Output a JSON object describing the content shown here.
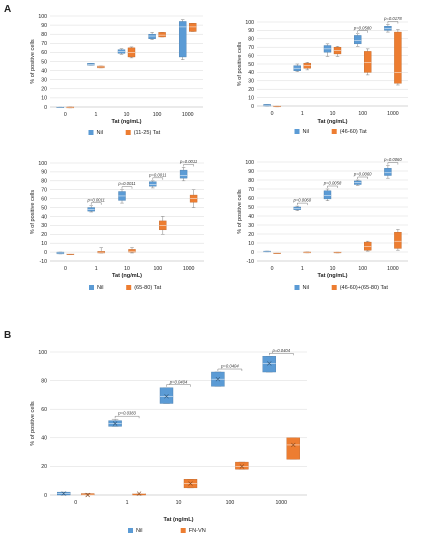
{
  "figure": {
    "panel_labels": [
      "A",
      "B"
    ]
  },
  "chart_data": [
    {
      "type": "box",
      "panel": "A",
      "ylabel": "% of positive cells",
      "xlabel": "Tat (ng/mL)",
      "categories": [
        "0",
        "1",
        "10",
        "100",
        "1000"
      ],
      "ylim": [
        0,
        100
      ],
      "yticks": [
        0,
        10,
        20,
        30,
        40,
        50,
        60,
        70,
        80,
        90,
        100
      ],
      "grid": true,
      "legend_position": "bottom",
      "series": [
        {
          "name": "Nil",
          "color": "#5b9bd5",
          "boxes": [
            [
              0,
              0,
              0,
              0,
              0
            ],
            [
              46,
              46,
              47,
              48,
              48
            ],
            [
              58,
              59,
              61,
              63,
              64
            ],
            [
              74,
              75,
              78,
              80,
              82
            ],
            [
              52,
              55,
              88,
              94,
              96
            ]
          ]
        },
        {
          "name": "(11-25) Tat",
          "color": "#ed7d31",
          "boxes": [
            [
              -1,
              -1,
              -1,
              0,
              0
            ],
            [
              43,
              43,
              44,
              45,
              45
            ],
            [
              54,
              55,
              60,
              65,
              66
            ],
            [
              77,
              77,
              79,
              82,
              82
            ],
            [
              83,
              83,
              88,
              92,
              92
            ]
          ]
        }
      ],
      "significance": []
    },
    {
      "type": "box",
      "panel": "A",
      "ylabel": "% of positive cells",
      "xlabel": "Tat (ng/mL)",
      "categories": [
        "0",
        "1",
        "10",
        "100",
        "1000"
      ],
      "ylim": [
        0,
        100
      ],
      "yticks": [
        0,
        10,
        20,
        30,
        40,
        50,
        60,
        70,
        80,
        90,
        100
      ],
      "grid": true,
      "legend_position": "bottom",
      "series": [
        {
          "name": "Nil",
          "color": "#5b9bd5",
          "boxes": [
            [
              0,
              0,
              1,
              2,
              2
            ],
            [
              41,
              42,
              45,
              48,
              50
            ],
            [
              59,
              64,
              68,
              72,
              74
            ],
            [
              71,
              74,
              78,
              84,
              86
            ],
            [
              88,
              90,
              92,
              95,
              97
            ]
          ]
        },
        {
          "name": "(46-60) Tat",
          "color": "#ed7d31",
          "boxes": [
            [
              -1,
              -1,
              0,
              0,
              0
            ],
            [
              43,
              45,
              48,
              51,
              52
            ],
            [
              59,
              62,
              66,
              70,
              71
            ],
            [
              37,
              40,
              52,
              65,
              68
            ],
            [
              25,
              27,
              40,
              88,
              91
            ]
          ]
        }
      ],
      "significance": [
        {
          "category": "100",
          "p": "p=0.0580"
        },
        {
          "category": "1000",
          "p": "p=0.0178"
        }
      ]
    },
    {
      "type": "box",
      "panel": "A",
      "ylabel": "% of positive cells",
      "xlabel": "Tat (ng/mL)",
      "categories": [
        "0",
        "1",
        "10",
        "100",
        "1000"
      ],
      "ylim": [
        -10,
        100
      ],
      "yticks": [
        -10,
        0,
        10,
        20,
        30,
        40,
        50,
        60,
        70,
        80,
        90,
        100
      ],
      "grid": true,
      "legend_position": "bottom",
      "series": [
        {
          "name": "Nil",
          "color": "#5b9bd5",
          "boxes": [
            [
              -2,
              -2,
              -1,
              0,
              0
            ],
            [
              45,
              46,
              48,
              50,
              52
            ],
            [
              55,
              58,
              63,
              68,
              70
            ],
            [
              72,
              74,
              76,
              79,
              80
            ],
            [
              80,
              83,
              86,
              92,
              95
            ]
          ]
        },
        {
          "name": "(65-80) Tat",
          "color": "#ed7d31",
          "boxes": [
            [
              -3,
              -3,
              -2,
              -2,
              -2
            ],
            [
              -1,
              -1,
              0,
              1,
              5
            ],
            [
              -1,
              0,
              1,
              3,
              5
            ],
            [
              20,
              25,
              30,
              35,
              40
            ],
            [
              50,
              56,
              60,
              64,
              70
            ]
          ]
        }
      ],
      "significance": [
        {
          "category": "1",
          "p": "p=0.0011"
        },
        {
          "category": "10",
          "p": "p=0.0011"
        },
        {
          "category": "100",
          "p": "p=0.0011"
        },
        {
          "category": "1000",
          "p": "p=0.0011"
        }
      ]
    },
    {
      "type": "box",
      "panel": "A",
      "ylabel": "% of positive cells",
      "xlabel": "Tat (ng/mL)",
      "categories": [
        "0",
        "1",
        "10",
        "100",
        "1000"
      ],
      "ylim": [
        -10,
        100
      ],
      "yticks": [
        -10,
        0,
        10,
        20,
        30,
        40,
        50,
        60,
        70,
        80,
        90,
        100
      ],
      "grid": true,
      "legend_position": "bottom",
      "series": [
        {
          "name": "Nil",
          "color": "#5b9bd5",
          "boxes": [
            [
              0,
              0,
              0,
              1,
              1
            ],
            [
              46,
              47,
              48,
              50,
              51
            ],
            [
              57,
              59,
              63,
              68,
              70
            ],
            [
              74,
              75,
              77,
              79,
              80
            ],
            [
              82,
              85,
              88,
              93,
              96
            ]
          ]
        },
        {
          "name": "(46-60)+(65-80) Tat",
          "color": "#ed7d31",
          "boxes": [
            [
              -1,
              -1,
              -1,
              -1,
              -1
            ],
            [
              -1,
              -1,
              -1,
              0,
              0
            ],
            [
              -1,
              -1,
              0,
              0,
              0
            ],
            [
              1,
              2,
              6,
              11,
              12
            ],
            [
              2,
              4,
              12,
              22,
              25
            ]
          ]
        }
      ],
      "significance": [
        {
          "category": "1",
          "p": "p=0.0060"
        },
        {
          "category": "10",
          "p": "p=0.0058"
        },
        {
          "category": "100",
          "p": "p=0.0060"
        },
        {
          "category": "1000",
          "p": "p=0.0060"
        }
      ]
    },
    {
      "type": "box",
      "panel": "B",
      "ylabel": "% of positive cells",
      "xlabel": "Tat (ng/mL)",
      "categories": [
        "0",
        "1",
        "10",
        "100",
        "1000"
      ],
      "ylim": [
        0,
        100
      ],
      "yticks": [
        0,
        20,
        40,
        60,
        80,
        100
      ],
      "grid": true,
      "legend_position": "bottom",
      "series": [
        {
          "name": "Nil",
          "color": "#5b9bd5",
          "boxes": [
            [
              0,
              0,
              1,
              2,
              2
            ],
            [
              48,
              48,
              50,
              52,
              53
            ],
            [
              64,
              64,
              69,
              75,
              75
            ],
            [
              76,
              76,
              81,
              86,
              86
            ],
            [
              86,
              86,
              92,
              97,
              97
            ]
          ]
        },
        {
          "name": "FN-VN",
          "color": "#ed7d31",
          "boxes": [
            [
              0,
              0,
              0,
              1,
              1
            ],
            [
              0,
              0,
              1,
              1,
              1
            ],
            [
              5,
              5,
              8,
              11,
              11
            ],
            [
              18,
              18,
              20,
              23,
              23
            ],
            [
              25,
              25,
              35,
              40,
              40
            ]
          ]
        }
      ],
      "significance": [
        {
          "category": "1",
          "p": "p=0.0383"
        },
        {
          "category": "10",
          "p": "p=0.0404"
        },
        {
          "category": "100",
          "p": "p=0.0404"
        },
        {
          "category": "1000",
          "p": "p=0.0404"
        }
      ]
    }
  ]
}
